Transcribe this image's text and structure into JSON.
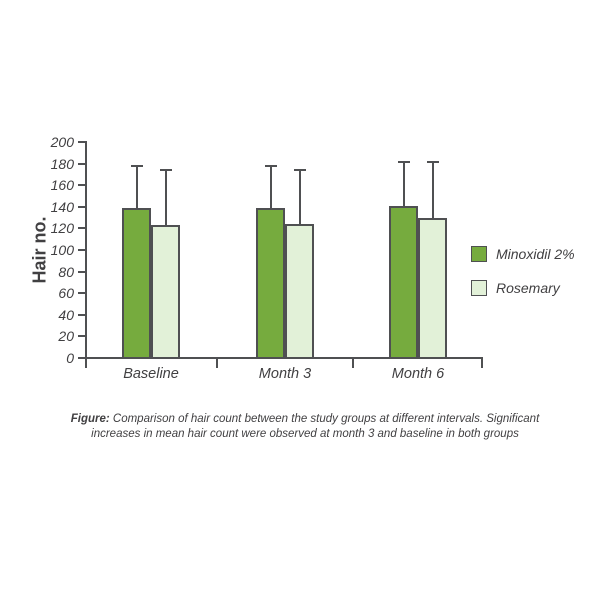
{
  "figure": {
    "caption_label": "Figure:",
    "caption_text": " Comparison of hair count between the study groups at different intervals. Significant increases in mean hair count were observed at month 3 and baseline in both groups"
  },
  "chart_data": {
    "type": "bar",
    "title": "",
    "xlabel": "",
    "ylabel": "Hair no.",
    "ylim": [
      0,
      200
    ],
    "ytick_step": 20,
    "yticks": [
      0,
      20,
      40,
      60,
      80,
      100,
      120,
      140,
      160,
      180,
      200
    ],
    "categories": [
      "Baseline",
      "Month 3",
      "Month 6"
    ],
    "series": [
      {
        "name": "Minoxidil 2%",
        "values": [
          138,
          138,
          140
        ],
        "error_top": [
          177,
          177,
          181
        ],
        "color": "#76AB3E",
        "border": "#4F5052"
      },
      {
        "name": "Rosemary",
        "values": [
          122,
          123,
          129
        ],
        "error_top": [
          173,
          173,
          181
        ],
        "color": "#E2F1D8",
        "border": "#4F5052"
      }
    ],
    "error_bars": "upper",
    "grid": false,
    "legend_position": "right"
  },
  "colors": {
    "line": "#4F5052",
    "text": "#414042",
    "background": "#FFFFFF",
    "minoxidil_green": "#76AB3E",
    "rosemary_green": "#E2F1D8"
  }
}
